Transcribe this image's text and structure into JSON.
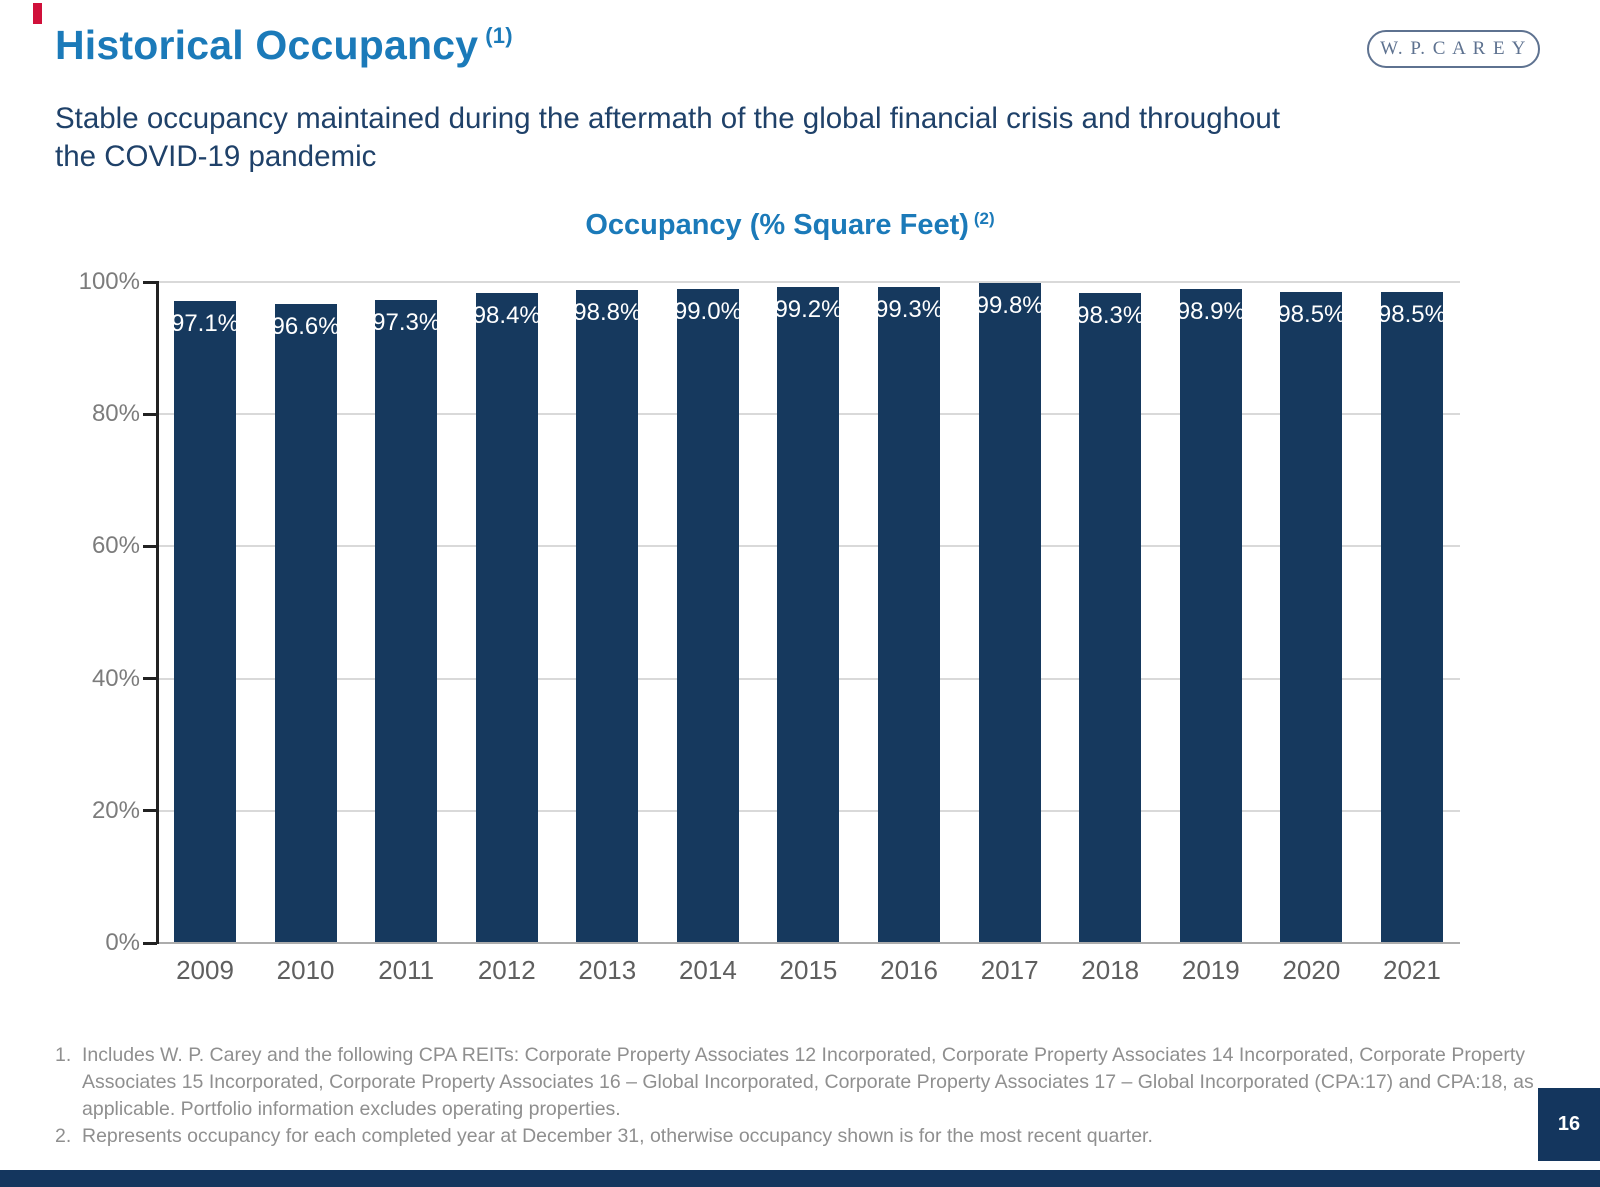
{
  "slide": {
    "title": "Historical Occupancy",
    "title_note": "(1)",
    "subtitle_lines": [
      "Stable occupancy maintained during the aftermath of the global financial crisis and throughout",
      "the COVID-19 pandemic"
    ],
    "logo_text": "W. P. C A R E Y",
    "page_number": "16"
  },
  "chart_data": {
    "type": "bar",
    "title": "Occupancy (% Square Feet)",
    "title_note": "(2)",
    "categories": [
      "2009",
      "2010",
      "2011",
      "2012",
      "2013",
      "2014",
      "2015",
      "2016",
      "2017",
      "2018",
      "2019",
      "2020",
      "2021"
    ],
    "values": [
      97.1,
      96.6,
      97.3,
      98.4,
      98.8,
      99.0,
      99.2,
      99.3,
      99.8,
      98.3,
      98.9,
      98.5,
      98.5
    ],
    "labels": [
      "97.1%",
      "96.6%",
      "97.3%",
      "98.4%",
      "98.8%",
      "99.0%",
      "99.2%",
      "99.3%",
      "99.8%",
      "98.3%",
      "98.9%",
      "98.5%",
      "98.5%"
    ],
    "xlabel": "",
    "ylabel": "",
    "ylim": [
      0,
      100
    ],
    "yticks": [
      "100%",
      "80%",
      "60%",
      "40%",
      "20%",
      "0%"
    ],
    "grid": true,
    "legend": false
  },
  "footnotes": [
    {
      "num": "1.",
      "text": "Includes W. P. Carey and the following CPA REITs: Corporate Property Associates 12 Incorporated, Corporate Property Associates 14 Incorporated, Corporate Property Associates 15 Incorporated, Corporate Property Associates 16 – Global Incorporated, Corporate Property Associates 17 – Global Incorporated (CPA:17) and CPA:18, as applicable. Portfolio information excludes operating properties."
    },
    {
      "num": "2.",
      "text": "Represents occupancy for each completed year at December 31, otherwise occupancy shown is for the most recent quarter."
    }
  ],
  "colors": {
    "accent_red": "#D0103A",
    "title_blue": "#1B7AB9",
    "subtitle_navy": "#1F4169",
    "bar_navy": "#16395E",
    "footer_navy": "#14365E",
    "logo_slate": "#5E7290",
    "grid_gray": "#D9D9D9",
    "axis_dark": "#222222",
    "tick_label_gray": "#7C7C7C",
    "year_label_gray": "#5F5F5F",
    "footnote_gray": "#8F8F8F"
  }
}
